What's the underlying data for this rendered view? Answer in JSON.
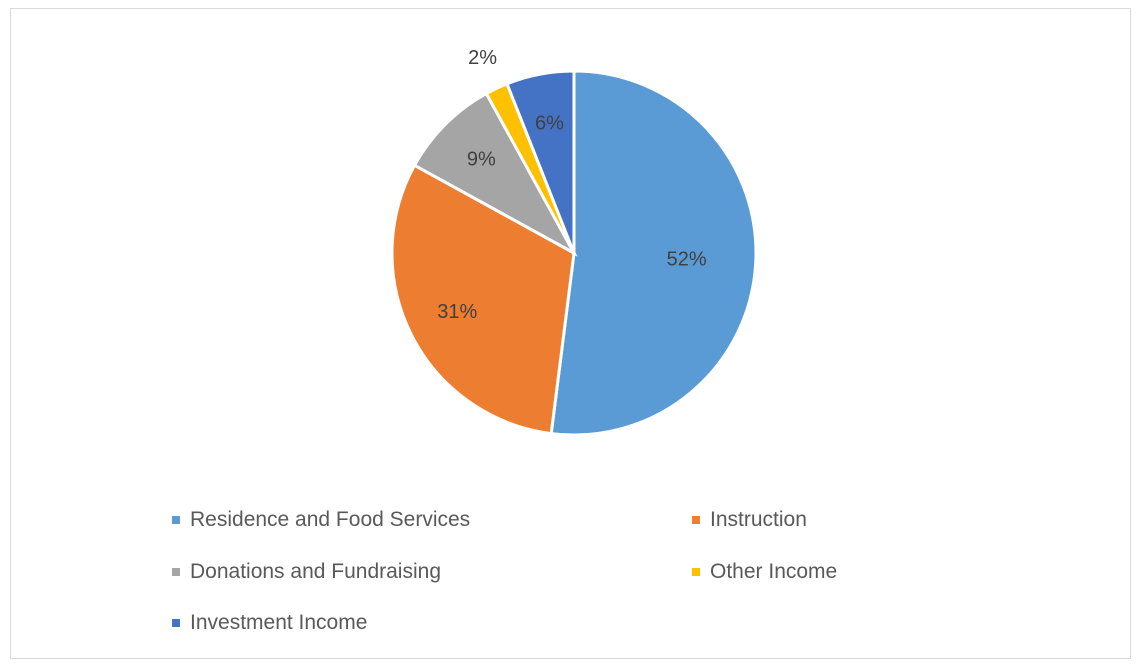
{
  "chart_data": {
    "type": "pie",
    "title": "",
    "categories": [
      "Residence and Food Services",
      "Instruction",
      "Donations and Fundraising",
      "Other Income",
      "Investment Income"
    ],
    "values": [
      52,
      31,
      9,
      2,
      6
    ],
    "data_labels": [
      "52%",
      "31%",
      "9%",
      "2%",
      "6%"
    ],
    "colors": [
      "#5b9bd5",
      "#ed7d31",
      "#a5a5a5",
      "#ffc000",
      "#4472c4"
    ],
    "legend": {
      "placement": "bottom",
      "entries": [
        "Residence and Food Services",
        "Instruction",
        "Donations and Fundraising",
        "Other Income",
        "Investment Income"
      ]
    }
  }
}
